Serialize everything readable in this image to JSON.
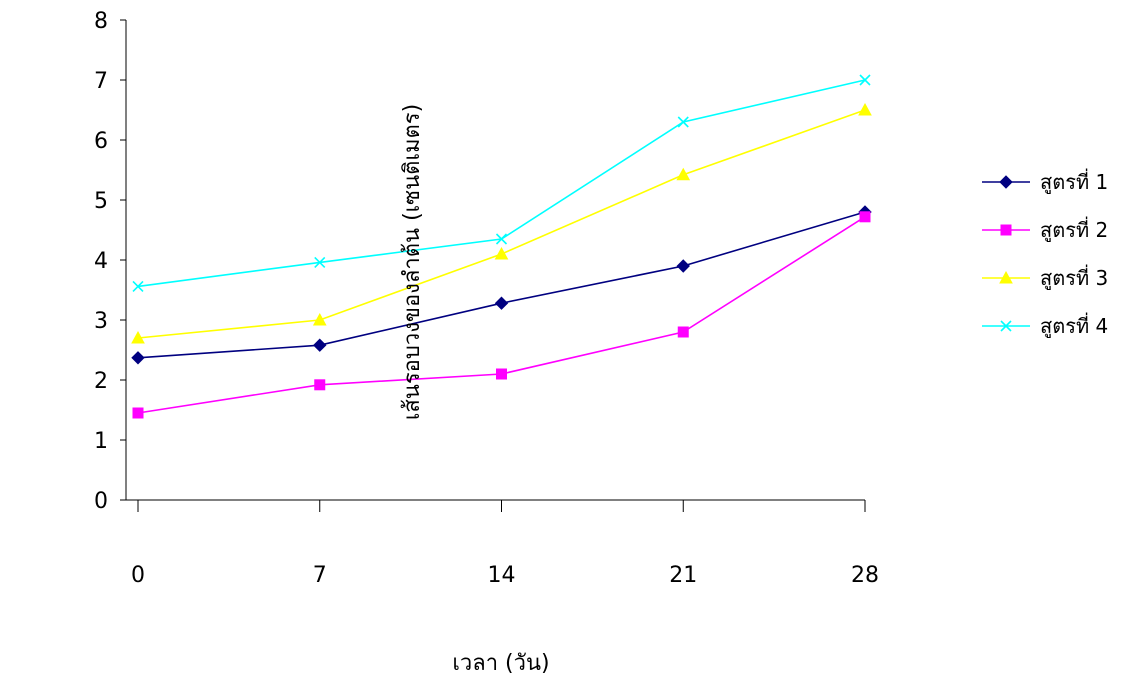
{
  "chart_data": {
    "type": "line",
    "x": [
      0,
      7,
      14,
      21,
      28
    ],
    "x_tick_labels": [
      "0",
      "7",
      "14",
      "21",
      "28"
    ],
    "y_tick_labels": [
      "0",
      "1",
      "2",
      "3",
      "4",
      "5",
      "6",
      "7",
      "8"
    ],
    "ylim": [
      0,
      8
    ],
    "xlabel": "เวลา (วัน)",
    "ylabel": "เส้นรอบวงของลำต้น (เซนติเมตร)",
    "grid": false,
    "legend_position": "right",
    "series": [
      {
        "name": "สูตรที่ 1",
        "color": "#000080",
        "marker": "diamond",
        "values": [
          2.37,
          2.58,
          3.28,
          3.9,
          4.8
        ]
      },
      {
        "name": "สูตรที่ 2",
        "color": "#FF00FF",
        "marker": "square",
        "values": [
          1.45,
          1.92,
          2.1,
          2.8,
          4.72
        ]
      },
      {
        "name": "สูตรที่ 3",
        "color": "#FFFF00",
        "marker": "triangle",
        "values": [
          2.7,
          3.0,
          4.1,
          5.42,
          6.5
        ]
      },
      {
        "name": "สูตรที่ 4",
        "color": "#00FFFF",
        "marker": "x",
        "values": [
          3.56,
          3.96,
          4.35,
          6.3,
          7.0
        ]
      }
    ]
  }
}
